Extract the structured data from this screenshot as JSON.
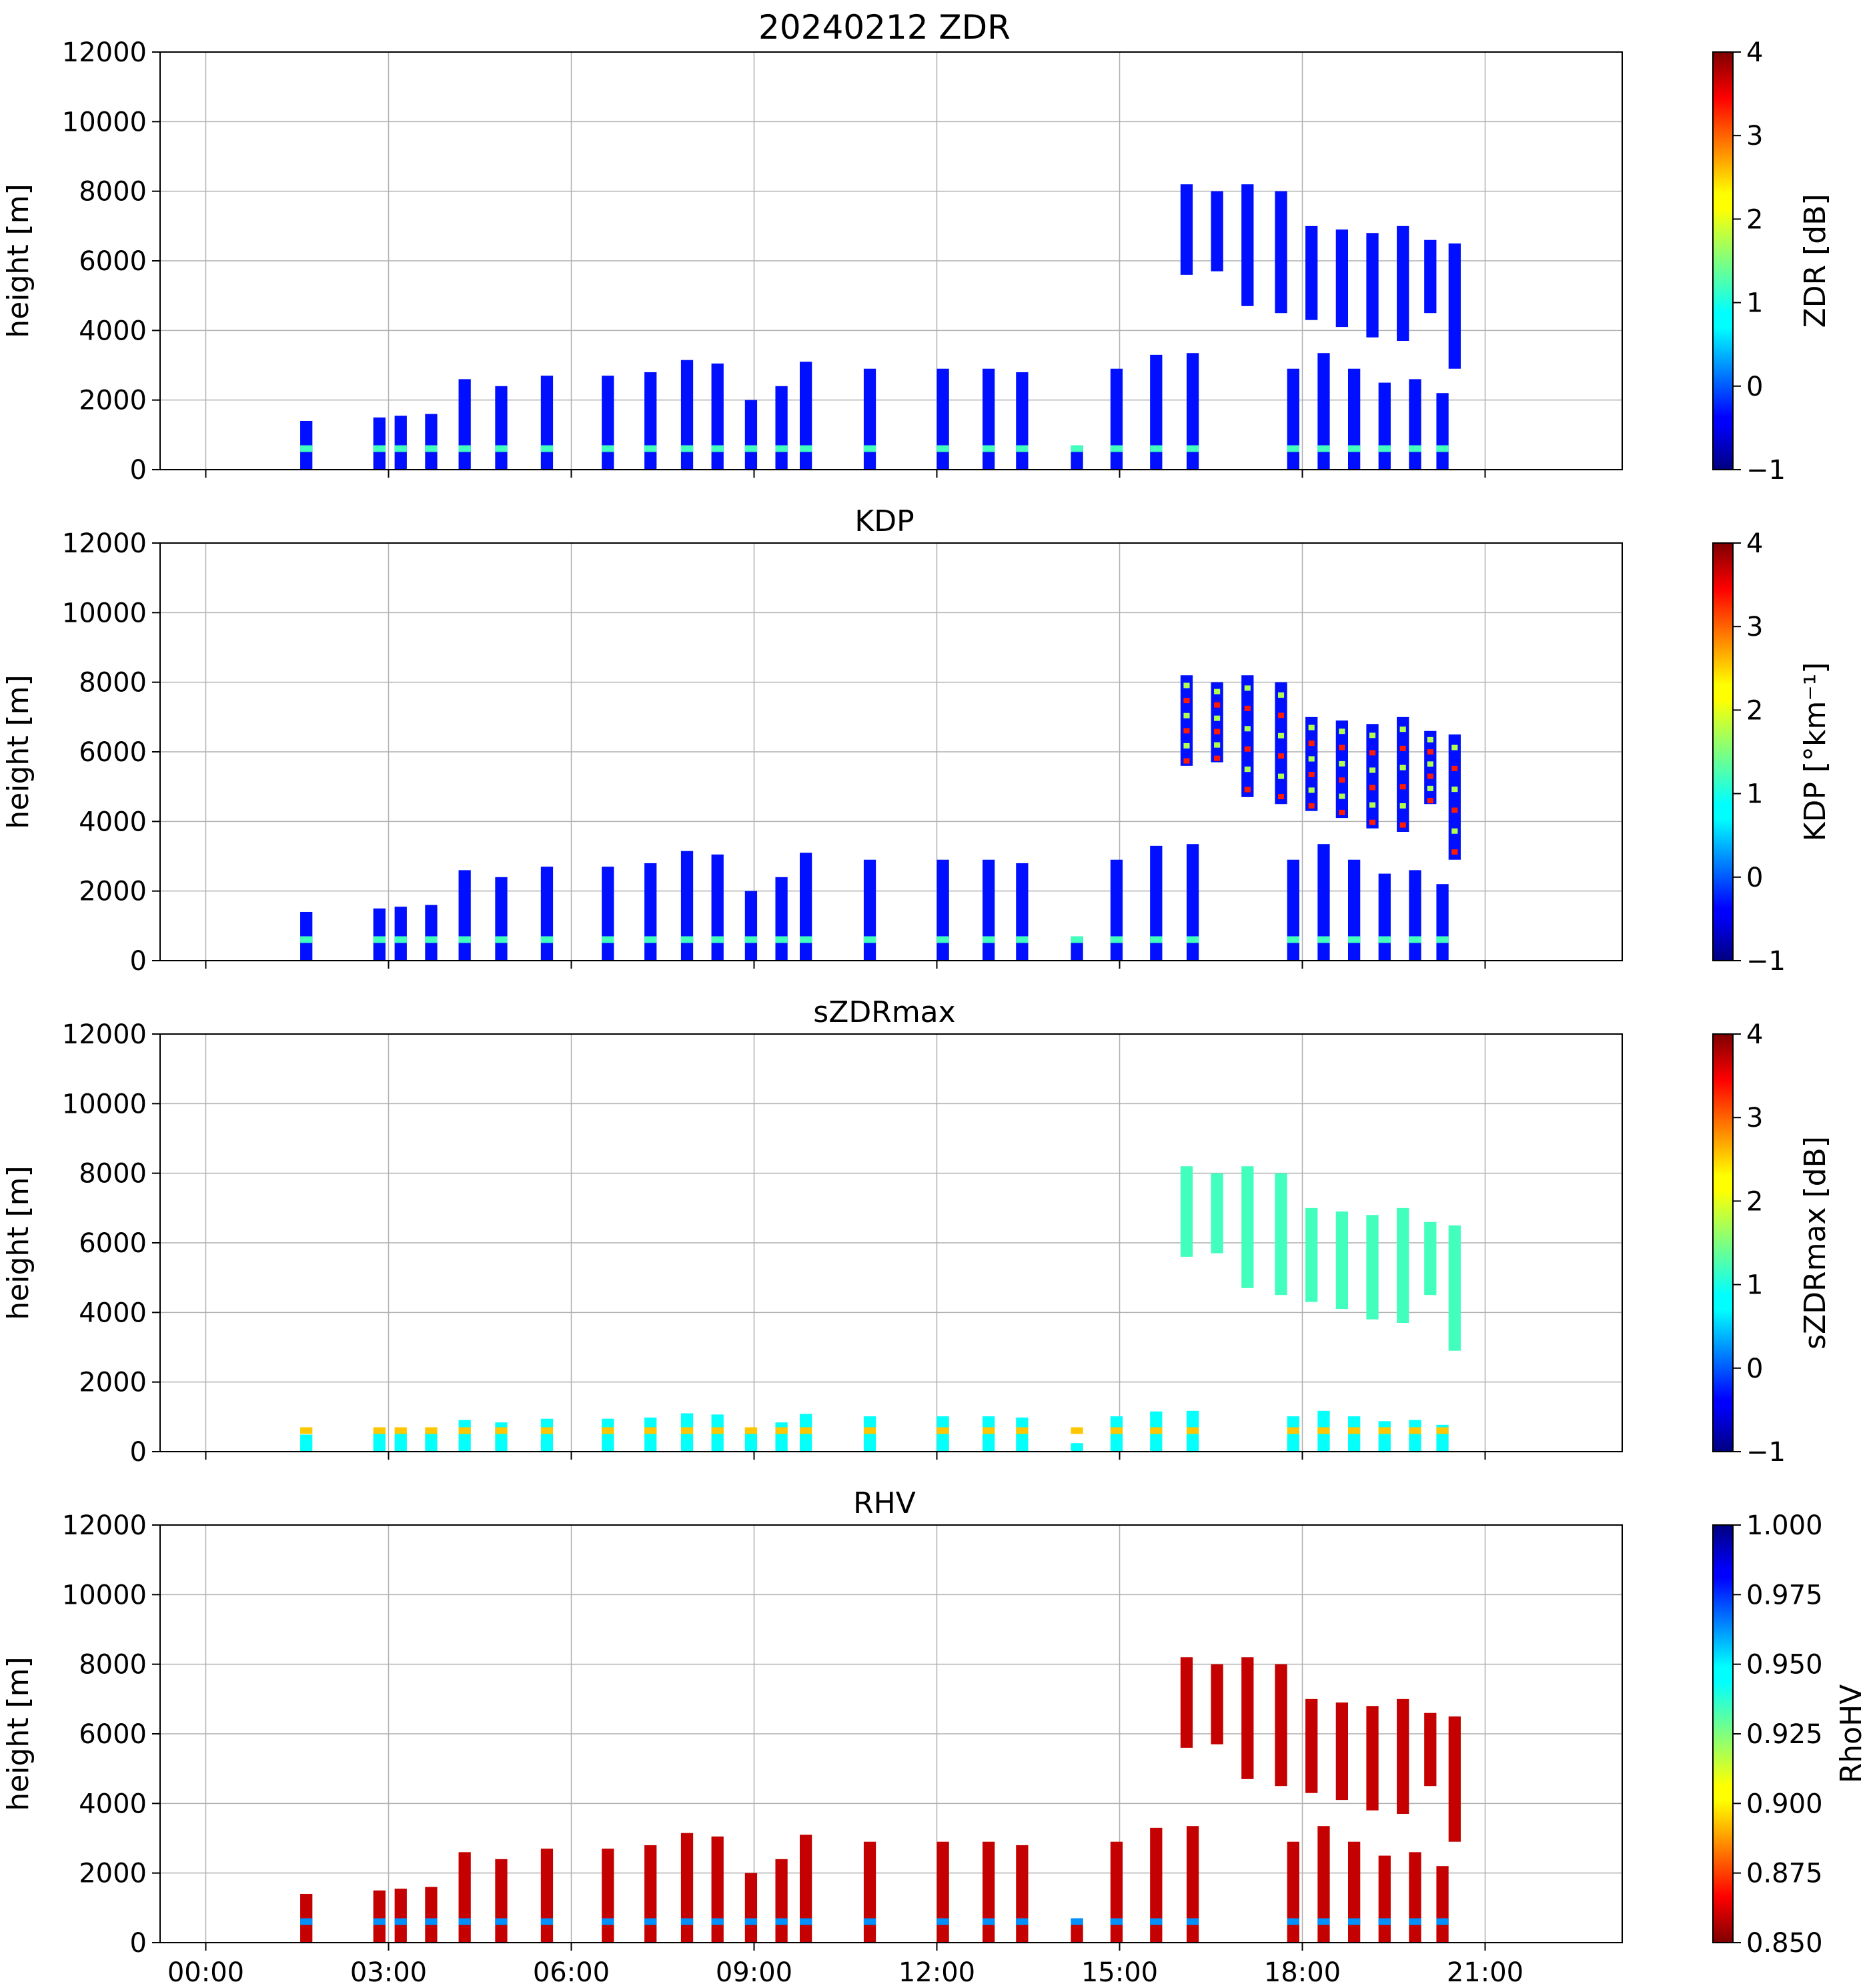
{
  "figure": {
    "title": "20240212 ZDR",
    "xlabel_times": [
      "00:00",
      "03:00",
      "06:00",
      "09:00",
      "12:00",
      "15:00",
      "18:00",
      "21:00"
    ]
  },
  "chart_data": [
    {
      "type": "heatmap",
      "title": "20240212 ZDR",
      "ylabel": "height [m]",
      "ylim": [
        0,
        12000
      ],
      "yticks": [
        "0",
        "2000",
        "4000",
        "6000",
        "8000",
        "10000",
        "12000"
      ],
      "xlim_hours": [
        -0.75,
        23.25
      ],
      "xticks": [
        "00:00",
        "03:00",
        "06:00",
        "09:00",
        "12:00",
        "15:00",
        "18:00",
        "21:00"
      ],
      "colorbar": {
        "label": "ZDR [dB]",
        "range": [
          -1,
          4
        ],
        "ticks": [
          "−1",
          "0",
          "1",
          "2",
          "3",
          "4"
        ],
        "colormap": "jet",
        "reversed": false
      },
      "typical_value": -0.3,
      "grid": true
    },
    {
      "type": "heatmap",
      "title": "KDP",
      "ylabel": "height [m]",
      "ylim": [
        0,
        12000
      ],
      "yticks": [
        "0",
        "2000",
        "4000",
        "6000",
        "8000",
        "10000",
        "12000"
      ],
      "xlim_hours": [
        -0.75,
        23.25
      ],
      "xticks": [
        "00:00",
        "03:00",
        "06:00",
        "09:00",
        "12:00",
        "15:00",
        "18:00",
        "21:00"
      ],
      "colorbar": {
        "label": "KDP [°km⁻¹]",
        "range": [
          -1,
          4
        ],
        "ticks": [
          "−1",
          "0",
          "1",
          "2",
          "3",
          "4"
        ],
        "colormap": "jet",
        "reversed": false
      },
      "typical_value": -0.3,
      "grid": true
    },
    {
      "type": "heatmap",
      "title": "sZDRmax",
      "ylabel": "height [m]",
      "ylim": [
        0,
        12000
      ],
      "yticks": [
        "0",
        "2000",
        "4000",
        "6000",
        "8000",
        "10000",
        "12000"
      ],
      "xlim_hours": [
        -0.75,
        23.25
      ],
      "xticks": [
        "00:00",
        "03:00",
        "06:00",
        "09:00",
        "12:00",
        "15:00",
        "18:00",
        "21:00"
      ],
      "colorbar": {
        "label": "sZDRmax [dB]",
        "range": [
          -1,
          4
        ],
        "ticks": [
          "−1",
          "0",
          "1",
          "2",
          "3",
          "4"
        ],
        "colormap": "jet",
        "reversed": false
      },
      "typical_value": 0.9,
      "grid": true
    },
    {
      "type": "heatmap",
      "title": "RHV",
      "ylabel": "height [m]",
      "ylim": [
        0,
        12000
      ],
      "yticks": [
        "0",
        "2000",
        "4000",
        "6000",
        "8000",
        "10000",
        "12000"
      ],
      "xlim_hours": [
        -0.75,
        23.25
      ],
      "xticks": [
        "00:00",
        "03:00",
        "06:00",
        "09:00",
        "12:00",
        "15:00",
        "18:00",
        "21:00"
      ],
      "colorbar": {
        "label": "RhoHV",
        "range": [
          0.85,
          1.0
        ],
        "ticks": [
          "0.850",
          "0.875",
          "0.900",
          "0.925",
          "0.950",
          "0.975",
          "1.000"
        ],
        "colormap": "jet",
        "reversed": true
      },
      "typical_value": 0.86,
      "grid": true
    }
  ],
  "echo_columns": [
    {
      "t0": 1.55,
      "t1": 1.75,
      "top": 1400
    },
    {
      "t0": 2.75,
      "t1": 2.95,
      "top": 1500
    },
    {
      "t0": 3.1,
      "t1": 3.3,
      "top": 1550
    },
    {
      "t0": 3.6,
      "t1": 3.8,
      "top": 1600
    },
    {
      "t0": 4.15,
      "t1": 4.35,
      "top": 2600
    },
    {
      "t0": 4.75,
      "t1": 4.95,
      "top": 2400
    },
    {
      "t0": 5.5,
      "t1": 5.7,
      "top": 2700
    },
    {
      "t0": 6.5,
      "t1": 6.7,
      "top": 2700
    },
    {
      "t0": 7.2,
      "t1": 7.4,
      "top": 2800
    },
    {
      "t0": 7.8,
      "t1": 8.0,
      "top": 3150
    },
    {
      "t0": 8.3,
      "t1": 8.5,
      "top": 3050
    },
    {
      "t0": 8.85,
      "t1": 9.05,
      "top": 2000
    },
    {
      "t0": 9.35,
      "t1": 9.55,
      "top": 2400
    },
    {
      "t0": 9.75,
      "t1": 9.95,
      "top": 3100
    },
    {
      "t0": 10.8,
      "t1": 11.0,
      "top": 2900
    },
    {
      "t0": 12.0,
      "t1": 12.2,
      "top": 2900
    },
    {
      "t0": 12.75,
      "t1": 12.95,
      "top": 2900
    },
    {
      "t0": 13.3,
      "t1": 13.5,
      "top": 2800
    },
    {
      "t0": 14.2,
      "t1": 14.4,
      "top": 700
    },
    {
      "t0": 14.85,
      "t1": 15.05,
      "top": 2900
    },
    {
      "t0": 15.5,
      "t1": 15.7,
      "top": 3300
    },
    {
      "t0": 16.1,
      "t1": 16.3,
      "top": 3350
    },
    {
      "t0": 17.75,
      "t1": 17.95,
      "top": 2900
    },
    {
      "t0": 18.25,
      "t1": 18.45,
      "top": 3350
    },
    {
      "t0": 18.75,
      "t1": 18.95,
      "top": 2900
    },
    {
      "t0": 19.25,
      "t1": 19.45,
      "top": 2500
    },
    {
      "t0": 19.75,
      "t1": 19.95,
      "top": 2600
    },
    {
      "t0": 20.2,
      "t1": 20.4,
      "top": 2200
    }
  ],
  "upper_echo_columns": [
    {
      "t0": 16.0,
      "t1": 16.2,
      "bottom": 5600,
      "top": 8200
    },
    {
      "t0": 16.5,
      "t1": 16.7,
      "bottom": 5700,
      "top": 8000
    },
    {
      "t0": 17.0,
      "t1": 17.2,
      "bottom": 4700,
      "top": 8200
    },
    {
      "t0": 17.55,
      "t1": 17.75,
      "bottom": 4500,
      "top": 8000
    },
    {
      "t0": 18.05,
      "t1": 18.25,
      "bottom": 4300,
      "top": 7000
    },
    {
      "t0": 18.55,
      "t1": 18.75,
      "bottom": 4100,
      "top": 6900
    },
    {
      "t0": 19.05,
      "t1": 19.25,
      "bottom": 3800,
      "top": 6800
    },
    {
      "t0": 19.55,
      "t1": 19.75,
      "bottom": 3700,
      "top": 7000
    },
    {
      "t0": 20.0,
      "t1": 20.2,
      "bottom": 4500,
      "top": 6600
    },
    {
      "t0": 20.4,
      "t1": 20.6,
      "bottom": 2900,
      "top": 6500
    }
  ]
}
